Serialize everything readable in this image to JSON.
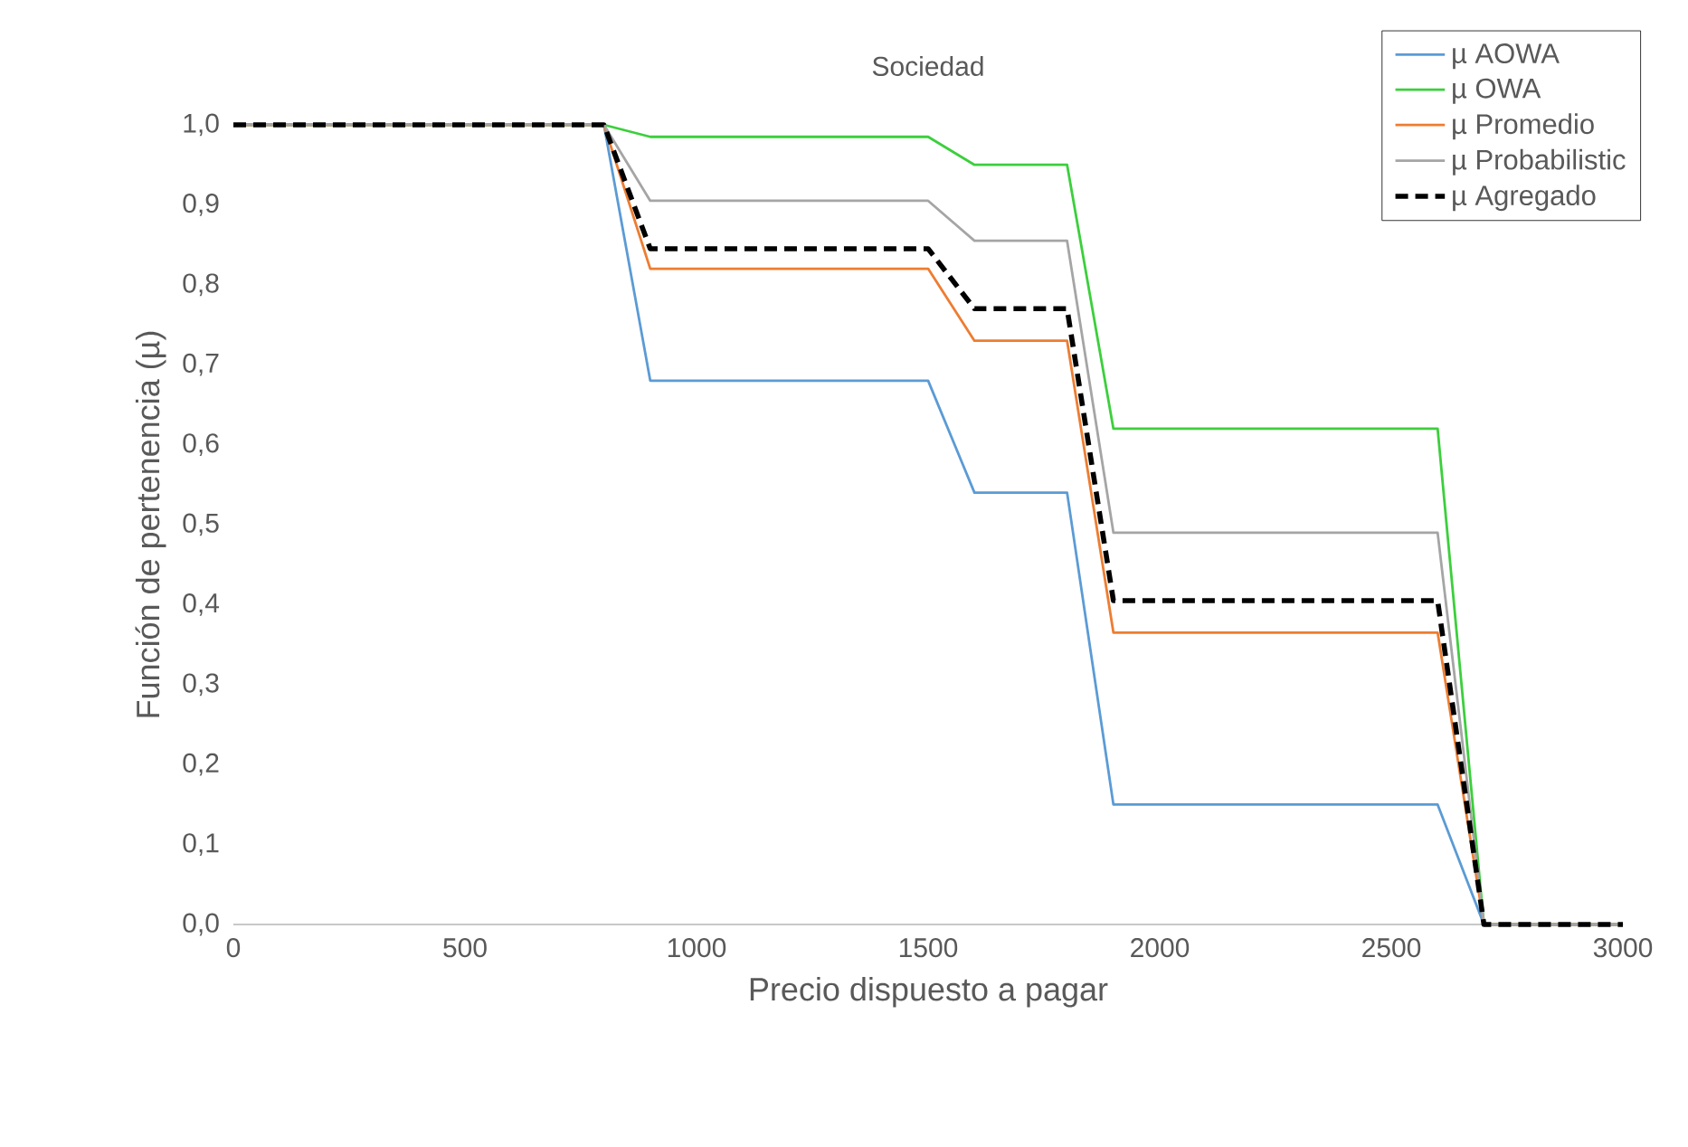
{
  "chart_data": {
    "type": "line",
    "title": "Sociedad",
    "xlabel": "Precio dispuesto a pagar",
    "ylabel": "Función de pertenencia (µ)",
    "x": [
      0,
      800,
      900,
      1500,
      1600,
      1800,
      1900,
      2600,
      2700,
      3000
    ],
    "series": [
      {
        "name": "µ AOWA",
        "color": "#5b9bd5",
        "values": [
          1,
          1,
          0.68,
          0.68,
          0.54,
          0.54,
          0.15,
          0.15,
          0,
          0
        ]
      },
      {
        "name": "µ OWA",
        "color": "#3ccf3c",
        "values": [
          1,
          1,
          0.985,
          0.985,
          0.95,
          0.95,
          0.62,
          0.62,
          0,
          0
        ]
      },
      {
        "name": "µ Promedio",
        "color": "#ed7d31",
        "values": [
          1,
          1,
          0.82,
          0.82,
          0.73,
          0.73,
          0.365,
          0.365,
          0,
          0
        ]
      },
      {
        "name": "µ Probabilistic",
        "color": "#a5a5a5",
        "values": [
          1,
          1,
          0.905,
          0.905,
          0.855,
          0.855,
          0.49,
          0.49,
          0,
          0
        ]
      },
      {
        "name": "µ Agregado",
        "color": "#000000",
        "line_style": "dashed",
        "values": [
          1,
          1,
          0.845,
          0.845,
          0.77,
          0.77,
          0.405,
          0.405,
          0,
          0
        ]
      }
    ],
    "xlim": [
      0,
      3000
    ],
    "xticks": [
      0,
      500,
      1000,
      1500,
      2000,
      2500,
      3000
    ],
    "ylim": [
      0,
      1
    ],
    "yticks": [
      {
        "value": 0,
        "label": "0,0"
      },
      {
        "value": 0.1,
        "label": "0,1"
      },
      {
        "value": 0.2,
        "label": "0,2"
      },
      {
        "value": 0.3,
        "label": "0,3"
      },
      {
        "value": 0.4,
        "label": "0,4"
      },
      {
        "value": 0.5,
        "label": "0,5"
      },
      {
        "value": 0.6,
        "label": "0,6"
      },
      {
        "value": 0.7,
        "label": "0,7"
      },
      {
        "value": 0.8,
        "label": "0,8"
      },
      {
        "value": 0.9,
        "label": "0,9"
      },
      {
        "value": 1,
        "label": "1,0"
      }
    ],
    "grid": false,
    "legend": "top right",
    "marker": "none",
    "line_style": "solid"
  }
}
